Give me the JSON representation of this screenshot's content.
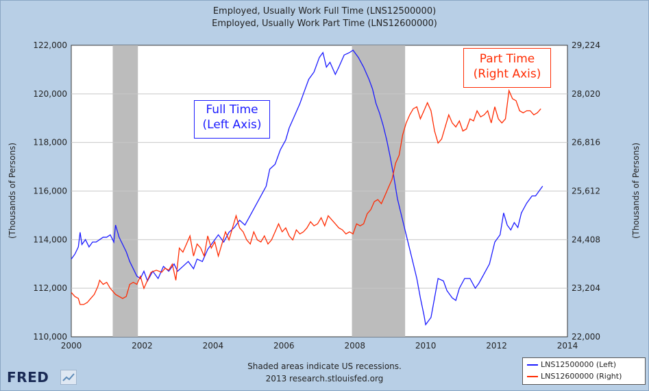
{
  "titles": [
    "Employed, Usually Work Full Time (LNS12500000)",
    "Employed, Usually Work Part Time (LNS12600000)"
  ],
  "note_line1": "Shaded areas indicate US recessions.",
  "note_line2": "2013 research.stlouisfed.org",
  "logo_text": "FRED",
  "colors": {
    "full_time": "#1a1aff",
    "part_time": "#ff2a00",
    "recession": "#bcbcbc",
    "background": "#b8cfe6"
  },
  "annotations": {
    "full_time": [
      "Full Time",
      "(Left Axis)"
    ],
    "part_time": [
      "Part Time",
      "(Right Axis)"
    ]
  },
  "chart_data": {
    "type": "line",
    "ylabel": "(Thousands of Persons)",
    "y2label": "(Thousands of Persons)",
    "xlim": [
      2000,
      2014
    ],
    "ylim": [
      110000,
      122000
    ],
    "y2lim": [
      22000,
      29224
    ],
    "x_ticks": [
      "2000",
      "2002",
      "2004",
      "2006",
      "2008",
      "2010",
      "2012",
      "2014"
    ],
    "y_ticks": [
      "110,000",
      "112,000",
      "114,000",
      "116,000",
      "118,000",
      "120,000",
      "122,000"
    ],
    "y2_ticks": [
      "22,000",
      "23,204",
      "24,408",
      "25,612",
      "26,816",
      "28,020",
      "29,224"
    ],
    "recessions": [
      [
        2001.17,
        2001.88
      ],
      [
        2007.92,
        2009.42
      ]
    ],
    "grid": true,
    "legend_position": "bottom-right",
    "series": [
      {
        "name": "LNS12500000 (Left)",
        "axis": "left",
        "points": [
          [
            2000.0,
            113200
          ],
          [
            2000.1,
            113400
          ],
          [
            2000.2,
            113700
          ],
          [
            2000.25,
            114300
          ],
          [
            2000.3,
            113800
          ],
          [
            2000.4,
            114000
          ],
          [
            2000.5,
            113700
          ],
          [
            2000.6,
            113900
          ],
          [
            2000.7,
            113900
          ],
          [
            2000.8,
            114000
          ],
          [
            2000.9,
            114100
          ],
          [
            2001.0,
            114100
          ],
          [
            2001.1,
            114200
          ],
          [
            2001.2,
            113900
          ],
          [
            2001.25,
            114600
          ],
          [
            2001.35,
            114100
          ],
          [
            2001.45,
            113800
          ],
          [
            2001.55,
            113500
          ],
          [
            2001.65,
            113100
          ],
          [
            2001.75,
            112800
          ],
          [
            2001.85,
            112500
          ],
          [
            2001.95,
            112400
          ],
          [
            2002.05,
            112700
          ],
          [
            2002.15,
            112300
          ],
          [
            2002.3,
            112700
          ],
          [
            2002.45,
            112400
          ],
          [
            2002.6,
            112900
          ],
          [
            2002.75,
            112700
          ],
          [
            2002.9,
            113000
          ],
          [
            2003.0,
            112700
          ],
          [
            2003.15,
            112900
          ],
          [
            2003.3,
            113100
          ],
          [
            2003.45,
            112800
          ],
          [
            2003.55,
            113200
          ],
          [
            2003.7,
            113100
          ],
          [
            2003.85,
            113600
          ],
          [
            2004.0,
            113900
          ],
          [
            2004.15,
            114200
          ],
          [
            2004.3,
            113900
          ],
          [
            2004.45,
            114300
          ],
          [
            2004.6,
            114500
          ],
          [
            2004.75,
            114800
          ],
          [
            2004.9,
            114600
          ],
          [
            2005.05,
            115000
          ],
          [
            2005.2,
            115400
          ],
          [
            2005.35,
            115800
          ],
          [
            2005.5,
            116200
          ],
          [
            2005.6,
            116900
          ],
          [
            2005.75,
            117100
          ],
          [
            2005.9,
            117700
          ],
          [
            2006.05,
            118100
          ],
          [
            2006.15,
            118600
          ],
          [
            2006.3,
            119100
          ],
          [
            2006.45,
            119600
          ],
          [
            2006.55,
            120000
          ],
          [
            2006.7,
            120600
          ],
          [
            2006.85,
            120900
          ],
          [
            2007.0,
            121500
          ],
          [
            2007.1,
            121700
          ],
          [
            2007.2,
            121100
          ],
          [
            2007.3,
            121300
          ],
          [
            2007.45,
            120800
          ],
          [
            2007.55,
            121100
          ],
          [
            2007.7,
            121600
          ],
          [
            2007.85,
            121700
          ],
          [
            2007.95,
            121800
          ],
          [
            2008.1,
            121500
          ],
          [
            2008.25,
            121100
          ],
          [
            2008.4,
            120600
          ],
          [
            2008.5,
            120200
          ],
          [
            2008.6,
            119600
          ],
          [
            2008.7,
            119200
          ],
          [
            2008.8,
            118700
          ],
          [
            2008.9,
            118100
          ],
          [
            2009.0,
            117400
          ],
          [
            2009.1,
            116600
          ],
          [
            2009.2,
            115700
          ],
          [
            2009.3,
            115100
          ],
          [
            2009.45,
            114200
          ],
          [
            2009.6,
            113300
          ],
          [
            2009.75,
            112400
          ],
          [
            2009.85,
            111600
          ],
          [
            2009.95,
            110900
          ],
          [
            2010.0,
            110500
          ],
          [
            2010.15,
            110800
          ],
          [
            2010.25,
            111600
          ],
          [
            2010.35,
            112400
          ],
          [
            2010.5,
            112300
          ],
          [
            2010.6,
            111900
          ],
          [
            2010.75,
            111600
          ],
          [
            2010.85,
            111500
          ],
          [
            2010.95,
            112000
          ],
          [
            2011.1,
            112400
          ],
          [
            2011.25,
            112400
          ],
          [
            2011.4,
            112000
          ],
          [
            2011.5,
            112200
          ],
          [
            2011.65,
            112600
          ],
          [
            2011.8,
            113000
          ],
          [
            2011.95,
            113900
          ],
          [
            2012.1,
            114200
          ],
          [
            2012.2,
            115100
          ],
          [
            2012.3,
            114600
          ],
          [
            2012.4,
            114400
          ],
          [
            2012.5,
            114700
          ],
          [
            2012.6,
            114500
          ],
          [
            2012.7,
            115100
          ],
          [
            2012.85,
            115500
          ],
          [
            2013.0,
            115800
          ],
          [
            2013.1,
            115800
          ],
          [
            2013.2,
            116000
          ],
          [
            2013.3,
            116200
          ]
        ]
      },
      {
        "name": "LNS12600000 (Right)",
        "axis": "right",
        "points": [
          [
            2000.0,
            23100
          ],
          [
            2000.1,
            23000
          ],
          [
            2000.2,
            22950
          ],
          [
            2000.25,
            22800
          ],
          [
            2000.35,
            22800
          ],
          [
            2000.45,
            22850
          ],
          [
            2000.55,
            22950
          ],
          [
            2000.65,
            23050
          ],
          [
            2000.75,
            23250
          ],
          [
            2000.8,
            23400
          ],
          [
            2000.9,
            23300
          ],
          [
            2001.0,
            23350
          ],
          [
            2001.1,
            23200
          ],
          [
            2001.25,
            23050
          ],
          [
            2001.35,
            23000
          ],
          [
            2001.45,
            22950
          ],
          [
            2001.55,
            23000
          ],
          [
            2001.65,
            23300
          ],
          [
            2001.75,
            23350
          ],
          [
            2001.85,
            23300
          ],
          [
            2001.95,
            23500
          ],
          [
            2002.05,
            23200
          ],
          [
            2002.15,
            23400
          ],
          [
            2002.25,
            23600
          ],
          [
            2002.4,
            23650
          ],
          [
            2002.55,
            23600
          ],
          [
            2002.65,
            23700
          ],
          [
            2002.75,
            23650
          ],
          [
            2002.85,
            23800
          ],
          [
            2002.95,
            23400
          ],
          [
            2003.05,
            24200
          ],
          [
            2003.15,
            24100
          ],
          [
            2003.25,
            24300
          ],
          [
            2003.35,
            24500
          ],
          [
            2003.45,
            24000
          ],
          [
            2003.55,
            24300
          ],
          [
            2003.65,
            24200
          ],
          [
            2003.75,
            24000
          ],
          [
            2003.85,
            24500
          ],
          [
            2003.95,
            24200
          ],
          [
            2004.05,
            24350
          ],
          [
            2004.15,
            24000
          ],
          [
            2004.25,
            24300
          ],
          [
            2004.35,
            24600
          ],
          [
            2004.45,
            24400
          ],
          [
            2004.55,
            24700
          ],
          [
            2004.65,
            25000
          ],
          [
            2004.75,
            24700
          ],
          [
            2004.85,
            24600
          ],
          [
            2004.95,
            24400
          ],
          [
            2005.05,
            24300
          ],
          [
            2005.15,
            24600
          ],
          [
            2005.25,
            24400
          ],
          [
            2005.35,
            24350
          ],
          [
            2005.45,
            24500
          ],
          [
            2005.55,
            24300
          ],
          [
            2005.65,
            24400
          ],
          [
            2005.75,
            24600
          ],
          [
            2005.85,
            24800
          ],
          [
            2005.95,
            24600
          ],
          [
            2006.05,
            24700
          ],
          [
            2006.15,
            24500
          ],
          [
            2006.25,
            24400
          ],
          [
            2006.35,
            24650
          ],
          [
            2006.45,
            24550
          ],
          [
            2006.55,
            24600
          ],
          [
            2006.65,
            24700
          ],
          [
            2006.75,
            24850
          ],
          [
            2006.85,
            24750
          ],
          [
            2006.95,
            24800
          ],
          [
            2007.05,
            24950
          ],
          [
            2007.15,
            24750
          ],
          [
            2007.25,
            25000
          ],
          [
            2007.35,
            24900
          ],
          [
            2007.45,
            24800
          ],
          [
            2007.55,
            24700
          ],
          [
            2007.65,
            24650
          ],
          [
            2007.75,
            24550
          ],
          [
            2007.85,
            24600
          ],
          [
            2007.95,
            24550
          ],
          [
            2008.05,
            24800
          ],
          [
            2008.15,
            24750
          ],
          [
            2008.25,
            24800
          ],
          [
            2008.35,
            25050
          ],
          [
            2008.45,
            25150
          ],
          [
            2008.55,
            25350
          ],
          [
            2008.65,
            25400
          ],
          [
            2008.75,
            25300
          ],
          [
            2008.85,
            25500
          ],
          [
            2008.95,
            25700
          ],
          [
            2009.05,
            25900
          ],
          [
            2009.15,
            26300
          ],
          [
            2009.25,
            26500
          ],
          [
            2009.35,
            27000
          ],
          [
            2009.45,
            27300
          ],
          [
            2009.55,
            27500
          ],
          [
            2009.65,
            27650
          ],
          [
            2009.75,
            27700
          ],
          [
            2009.85,
            27400
          ],
          [
            2009.95,
            27600
          ],
          [
            2010.05,
            27800
          ],
          [
            2010.15,
            27600
          ],
          [
            2010.25,
            27100
          ],
          [
            2010.35,
            26800
          ],
          [
            2010.45,
            26900
          ],
          [
            2010.55,
            27200
          ],
          [
            2010.65,
            27500
          ],
          [
            2010.75,
            27300
          ],
          [
            2010.85,
            27200
          ],
          [
            2010.95,
            27350
          ],
          [
            2011.05,
            27100
          ],
          [
            2011.15,
            27150
          ],
          [
            2011.25,
            27400
          ],
          [
            2011.35,
            27350
          ],
          [
            2011.45,
            27600
          ],
          [
            2011.55,
            27450
          ],
          [
            2011.65,
            27500
          ],
          [
            2011.75,
            27600
          ],
          [
            2011.85,
            27300
          ],
          [
            2011.95,
            27700
          ],
          [
            2012.05,
            27400
          ],
          [
            2012.15,
            27300
          ],
          [
            2012.25,
            27400
          ],
          [
            2012.35,
            28100
          ],
          [
            2012.45,
            27900
          ],
          [
            2012.55,
            27850
          ],
          [
            2012.65,
            27600
          ],
          [
            2012.75,
            27550
          ],
          [
            2012.85,
            27600
          ],
          [
            2012.95,
            27600
          ],
          [
            2013.05,
            27500
          ],
          [
            2013.15,
            27550
          ],
          [
            2013.25,
            27650
          ]
        ]
      }
    ]
  }
}
